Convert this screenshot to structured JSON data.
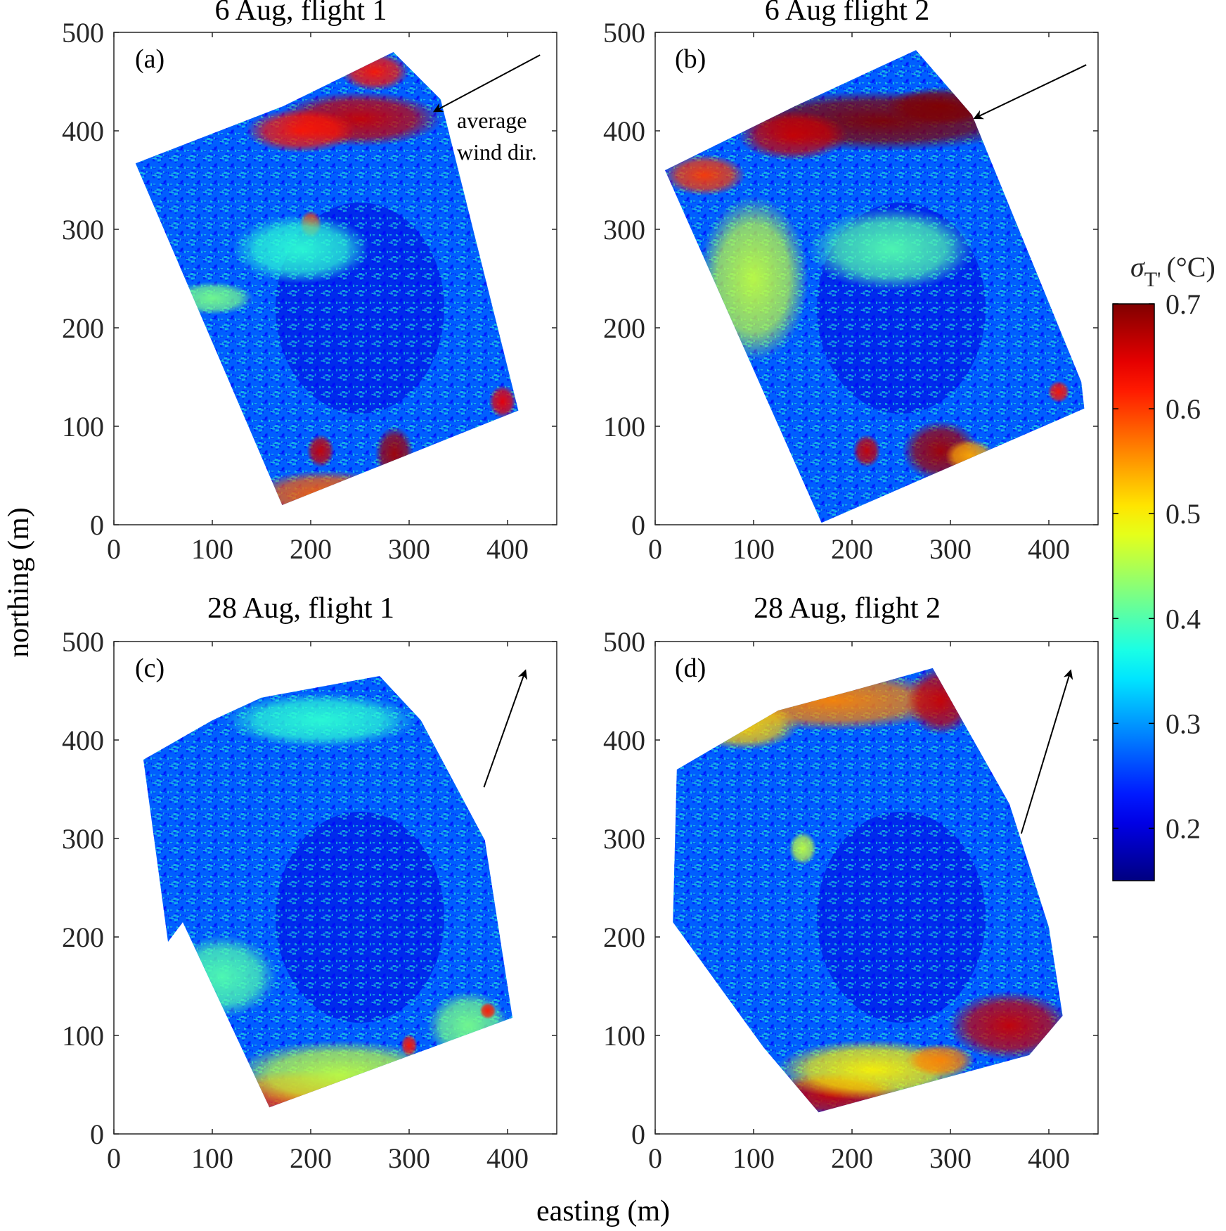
{
  "chart_data": {
    "type": "heatmap",
    "xlabel": "easting (m)",
    "ylabel": "northing (m)",
    "colorbar": {
      "label_symbol": "σ",
      "label_subscript": "T'",
      "label_unit": "(°C)",
      "ticks": [
        "0.2",
        "0.3",
        "0.4",
        "0.5",
        "0.6",
        "0.7"
      ],
      "tick_values": [
        0.2,
        0.3,
        0.4,
        0.5,
        0.6,
        0.7
      ],
      "range": [
        0.15,
        0.7
      ],
      "colormap": "jet"
    },
    "panels": [
      {
        "title": "6 Aug, flight 1",
        "letter": "(a)",
        "xlim": [
          0,
          450
        ],
        "ylim": [
          0,
          500
        ],
        "xticks": [
          "0",
          "100",
          "200",
          "300",
          "400"
        ],
        "yticks": [
          "0",
          "100",
          "200",
          "300",
          "400",
          "500"
        ],
        "footprint": [
          [
            22,
            367
          ],
          [
            172,
            425
          ],
          [
            284,
            480
          ],
          [
            332,
            432
          ],
          [
            411,
            116
          ],
          [
            171,
            20
          ]
        ],
        "wind_arrow": {
          "tail": [
            433,
            477
          ],
          "head": [
            326,
            420
          ]
        },
        "annotation": [
          "average",
          "wind dir."
        ],
        "features": [
          {
            "x": 250,
            "y": 412,
            "rx": 60,
            "ry": 20,
            "v": 0.66
          },
          {
            "x": 190,
            "y": 400,
            "rx": 40,
            "ry": 16,
            "v": 0.62
          },
          {
            "x": 265,
            "y": 460,
            "rx": 25,
            "ry": 14,
            "v": 0.62
          },
          {
            "x": 215,
            "y": 30,
            "rx": 55,
            "ry": 18,
            "v": 0.58
          },
          {
            "x": 285,
            "y": 72,
            "rx": 14,
            "ry": 20,
            "v": 0.68
          },
          {
            "x": 210,
            "y": 75,
            "rx": 10,
            "ry": 12,
            "v": 0.66
          },
          {
            "x": 395,
            "y": 125,
            "rx": 10,
            "ry": 12,
            "v": 0.64
          },
          {
            "x": 200,
            "y": 305,
            "rx": 8,
            "ry": 10,
            "v": 0.6
          },
          {
            "x": 190,
            "y": 280,
            "rx": 50,
            "ry": 25,
            "v": 0.38
          },
          {
            "x": 100,
            "y": 230,
            "rx": 30,
            "ry": 12,
            "v": 0.42
          }
        ]
      },
      {
        "title": "6 Aug flight 2",
        "letter": "(b)",
        "xlim": [
          0,
          450
        ],
        "ylim": [
          0,
          500
        ],
        "xticks": [
          "0",
          "100",
          "200",
          "300",
          "400"
        ],
        "yticks": [
          "0",
          "100",
          "200",
          "300",
          "400",
          "500"
        ],
        "footprint": [
          [
            10,
            360
          ],
          [
            142,
            425
          ],
          [
            265,
            482
          ],
          [
            322,
            416
          ],
          [
            433,
            145
          ],
          [
            436,
            118
          ],
          [
            169,
            2
          ]
        ],
        "wind_arrow": {
          "tail": [
            438,
            467
          ],
          "head": [
            325,
            413
          ]
        },
        "features": [
          {
            "x": 230,
            "y": 410,
            "rx": 110,
            "ry": 22,
            "v": 0.7
          },
          {
            "x": 290,
            "y": 425,
            "rx": 40,
            "ry": 14,
            "v": 0.7
          },
          {
            "x": 140,
            "y": 395,
            "rx": 40,
            "ry": 18,
            "v": 0.66
          },
          {
            "x": 50,
            "y": 355,
            "rx": 30,
            "ry": 15,
            "v": 0.6
          },
          {
            "x": 290,
            "y": 75,
            "rx": 28,
            "ry": 22,
            "v": 0.68
          },
          {
            "x": 215,
            "y": 75,
            "rx": 10,
            "ry": 12,
            "v": 0.66
          },
          {
            "x": 320,
            "y": 70,
            "rx": 18,
            "ry": 12,
            "v": 0.54
          },
          {
            "x": 410,
            "y": 135,
            "rx": 8,
            "ry": 8,
            "v": 0.62
          },
          {
            "x": 100,
            "y": 250,
            "rx": 40,
            "ry": 60,
            "v": 0.46
          },
          {
            "x": 240,
            "y": 280,
            "rx": 60,
            "ry": 30,
            "v": 0.4
          }
        ]
      },
      {
        "title": "28 Aug, flight 1",
        "letter": "(c)",
        "xlim": [
          0,
          450
        ],
        "ylim": [
          0,
          500
        ],
        "xticks": [
          "0",
          "100",
          "200",
          "300",
          "400"
        ],
        "yticks": [
          "0",
          "100",
          "200",
          "300",
          "400",
          "500"
        ],
        "footprint": [
          [
            30,
            380
          ],
          [
            100,
            420
          ],
          [
            150,
            443
          ],
          [
            270,
            465
          ],
          [
            312,
            420
          ],
          [
            377,
            298
          ],
          [
            405,
            118
          ],
          [
            158,
            27
          ],
          [
            70,
            215
          ],
          [
            55,
            195
          ]
        ],
        "wind_arrow": {
          "tail": [
            376,
            352
          ],
          "head": [
            418,
            470
          ]
        },
        "features": [
          {
            "x": 190,
            "y": 40,
            "rx": 60,
            "ry": 18,
            "v": 0.6
          },
          {
            "x": 230,
            "y": 60,
            "rx": 80,
            "ry": 25,
            "v": 0.46
          },
          {
            "x": 110,
            "y": 160,
            "rx": 40,
            "ry": 30,
            "v": 0.4
          },
          {
            "x": 210,
            "y": 420,
            "rx": 70,
            "ry": 20,
            "v": 0.38
          },
          {
            "x": 360,
            "y": 110,
            "rx": 30,
            "ry": 25,
            "v": 0.42
          },
          {
            "x": 300,
            "y": 90,
            "rx": 6,
            "ry": 8,
            "v": 0.62
          },
          {
            "x": 380,
            "y": 125,
            "rx": 6,
            "ry": 6,
            "v": 0.62
          }
        ]
      },
      {
        "title": "28 Aug, flight 2",
        "letter": "(d)",
        "xlim": [
          0,
          450
        ],
        "ylim": [
          0,
          500
        ],
        "xticks": [
          "0",
          "100",
          "200",
          "300",
          "400"
        ],
        "yticks": [
          "0",
          "100",
          "200",
          "300",
          "400",
          "500"
        ],
        "footprint": [
          [
            22,
            370
          ],
          [
            125,
            430
          ],
          [
            200,
            450
          ],
          [
            282,
            473
          ],
          [
            360,
            335
          ],
          [
            400,
            210
          ],
          [
            414,
            120
          ],
          [
            380,
            80
          ],
          [
            166,
            22
          ],
          [
            110,
            88
          ],
          [
            18,
            215
          ]
        ],
        "wind_arrow": {
          "tail": [
            372,
            305
          ],
          "head": [
            422,
            470
          ]
        },
        "features": [
          {
            "x": 180,
            "y": 440,
            "rx": 90,
            "ry": 22,
            "v": 0.56
          },
          {
            "x": 290,
            "y": 440,
            "rx": 25,
            "ry": 25,
            "v": 0.66
          },
          {
            "x": 90,
            "y": 415,
            "rx": 40,
            "ry": 18,
            "v": 0.52
          },
          {
            "x": 360,
            "y": 110,
            "rx": 45,
            "ry": 25,
            "v": 0.66
          },
          {
            "x": 180,
            "y": 40,
            "rx": 50,
            "ry": 16,
            "v": 0.66
          },
          {
            "x": 220,
            "y": 65,
            "rx": 70,
            "ry": 22,
            "v": 0.5
          },
          {
            "x": 290,
            "y": 75,
            "rx": 25,
            "ry": 12,
            "v": 0.56
          },
          {
            "x": 150,
            "y": 290,
            "rx": 10,
            "ry": 12,
            "v": 0.46
          }
        ]
      }
    ]
  }
}
